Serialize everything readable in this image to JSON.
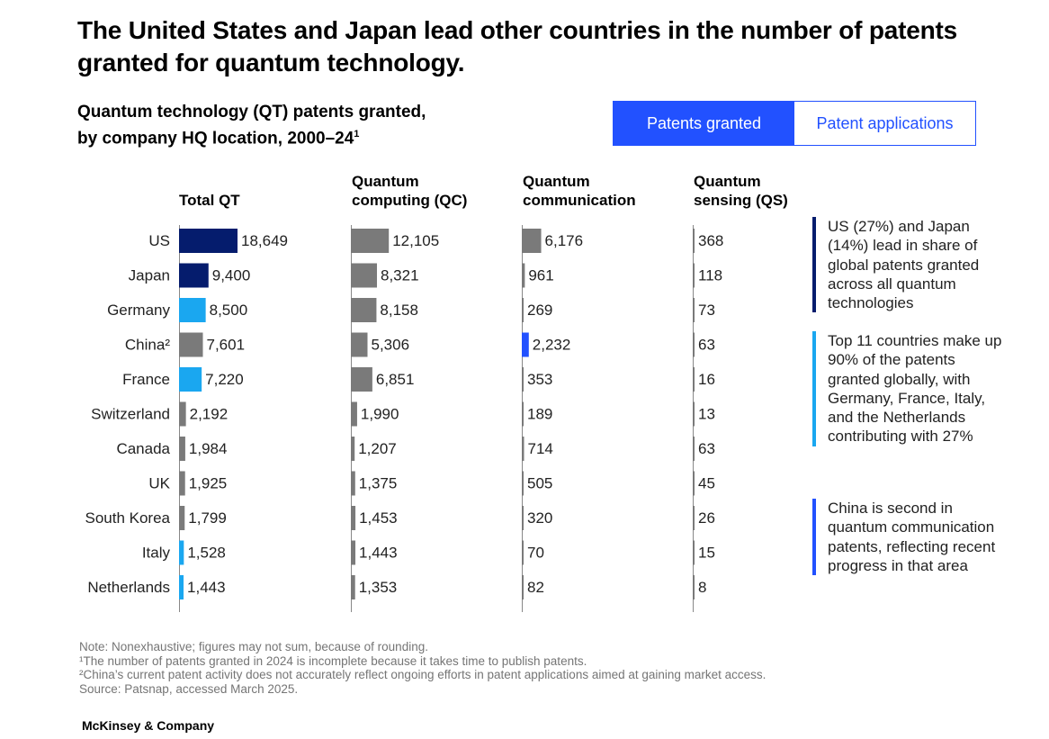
{
  "title": "The United States and Japan lead other countries in the number of patents granted for quantum technology.",
  "subtitle": {
    "line1": "Quantum technology (QT) patents granted,",
    "line2": "by company HQ location, 2000–24",
    "footnote_mark": "1"
  },
  "tabs": [
    {
      "label": "Patents granted",
      "active": true
    },
    {
      "label": "Patent applications",
      "active": false
    }
  ],
  "colors": {
    "dark_navy": "#051c6d",
    "light_blue": "#1aa7f0",
    "bright_blue": "#2251ff",
    "gray_bar": "#7a7a7a"
  },
  "chart_data": {
    "type": "bar",
    "orientation": "horizontal",
    "categories": [
      "US",
      "Japan",
      "Germany",
      "China²",
      "France",
      "Switzerland",
      "Canada",
      "UK",
      "South Korea",
      "Italy",
      "Netherlands"
    ],
    "series": [
      {
        "name": "Total QT",
        "values": [
          18649,
          9400,
          8500,
          7601,
          7220,
          2192,
          1984,
          1925,
          1799,
          1528,
          1443
        ],
        "labels": [
          "18,649",
          "9,400",
          "8,500",
          "7,601",
          "7,220",
          "2,192",
          "1,984",
          "1,925",
          "1,799",
          "1,528",
          "1,443"
        ],
        "colors": [
          "#051c6d",
          "#051c6d",
          "#1aa7f0",
          "#7a7a7a",
          "#1aa7f0",
          "#7a7a7a",
          "#7a7a7a",
          "#7a7a7a",
          "#7a7a7a",
          "#1aa7f0",
          "#1aa7f0"
        ]
      },
      {
        "name": "Quantum computing (QC)",
        "values": [
          12105,
          8321,
          8158,
          5306,
          6851,
          1990,
          1207,
          1375,
          1453,
          1443,
          1353
        ],
        "labels": [
          "12,105",
          "8,321",
          "8,158",
          "5,306",
          "6,851",
          "1,990",
          "1,207",
          "1,375",
          "1,453",
          "1,443",
          "1,353"
        ],
        "colors": [
          "#7a7a7a",
          "#7a7a7a",
          "#7a7a7a",
          "#7a7a7a",
          "#7a7a7a",
          "#7a7a7a",
          "#7a7a7a",
          "#7a7a7a",
          "#7a7a7a",
          "#7a7a7a",
          "#7a7a7a"
        ]
      },
      {
        "name": "Quantum communication",
        "values": [
          6176,
          961,
          269,
          2232,
          353,
          189,
          714,
          505,
          320,
          70,
          82
        ],
        "labels": [
          "6,176",
          "961",
          "269",
          "2,232",
          "353",
          "189",
          "714",
          "505",
          "320",
          "70",
          "82"
        ],
        "colors": [
          "#7a7a7a",
          "#7a7a7a",
          "#7a7a7a",
          "#2251ff",
          "#7a7a7a",
          "#7a7a7a",
          "#7a7a7a",
          "#7a7a7a",
          "#7a7a7a",
          "#7a7a7a",
          "#7a7a7a"
        ]
      },
      {
        "name": "Quantum sensing (QS)",
        "values": [
          368,
          118,
          73,
          63,
          16,
          13,
          63,
          45,
          26,
          15,
          8
        ],
        "labels": [
          "368",
          "118",
          "73",
          "63",
          "16",
          "13",
          "63",
          "45",
          "26",
          "15",
          "8"
        ],
        "colors": [
          "#7a7a7a",
          "#7a7a7a",
          "#7a7a7a",
          "#7a7a7a",
          "#7a7a7a",
          "#7a7a7a",
          "#7a7a7a",
          "#7a7a7a",
          "#7a7a7a",
          "#7a7a7a",
          "#7a7a7a"
        ]
      }
    ],
    "column_headers": [
      {
        "line1": "",
        "line2": "Total QT"
      },
      {
        "line1": "Quantum",
        "line2": "computing (QC)"
      },
      {
        "line1": "Quantum",
        "line2": "communication"
      },
      {
        "line1": "Quantum",
        "line2": "sensing (QS)"
      }
    ],
    "grid": false,
    "legend": "none"
  },
  "callouts": [
    "US (27%) and Japan (14%) lead in share of global patents granted across all quantum technologies",
    "Top 11 countries make up 90% of the patents granted globally, with Germany, France, Italy, and the Netherlands contributing with 27%",
    "China is second in quantum communication patents, reflecting recent progress in that area"
  ],
  "notes": [
    "Note: Nonexhaustive; figures may not sum, because of rounding.",
    "¹The number of patents granted in 2024 is incomplete because it takes time to publish patents.",
    "²China’s current patent activity does not accurately reflect ongoing efforts in patent applications aimed at gaining market access.",
    "Source: Patsnap, accessed March 2025."
  ],
  "brand": "McKinsey & Company"
}
